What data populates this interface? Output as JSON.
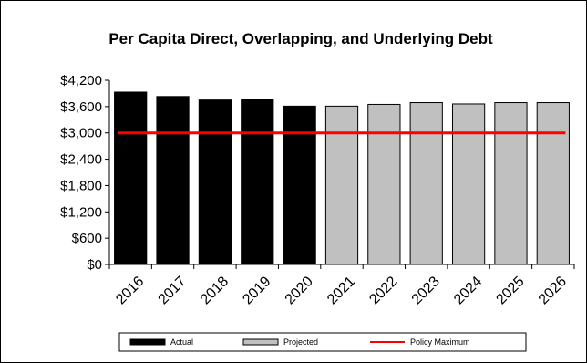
{
  "chart_data": {
    "type": "bar",
    "title": "Per Capita Direct, Overlapping,  and Underlying Debt",
    "categories": [
      "2016",
      "2017",
      "2018",
      "2019",
      "2020",
      "2021",
      "2022",
      "2023",
      "2024",
      "2025",
      "2026"
    ],
    "series": [
      {
        "name": "Actual",
        "color": "#000000",
        "values": [
          3930,
          3830,
          3750,
          3770,
          3610,
          null,
          null,
          null,
          null,
          null,
          null
        ]
      },
      {
        "name": "Projected",
        "color": "#c0c0c0",
        "values": [
          null,
          null,
          null,
          null,
          null,
          3610,
          3650,
          3690,
          3660,
          3690,
          3690
        ]
      }
    ],
    "reference_line": {
      "name": "Policy Maximum",
      "value": 3000,
      "color": "#ff0000"
    },
    "ylim": [
      0,
      4200
    ],
    "yticks": [
      {
        "value": 0,
        "label": "$0"
      },
      {
        "value": 600,
        "label": "$600"
      },
      {
        "value": 1200,
        "label": "$1,200"
      },
      {
        "value": 1800,
        "label": "$1,800"
      },
      {
        "value": 2400,
        "label": "$2,400"
      },
      {
        "value": 3000,
        "label": "$3,000"
      },
      {
        "value": 3600,
        "label": "$3,600"
      },
      {
        "value": 4200,
        "label": "$4,200"
      }
    ],
    "grid": false,
    "legend_position": "bottom"
  }
}
